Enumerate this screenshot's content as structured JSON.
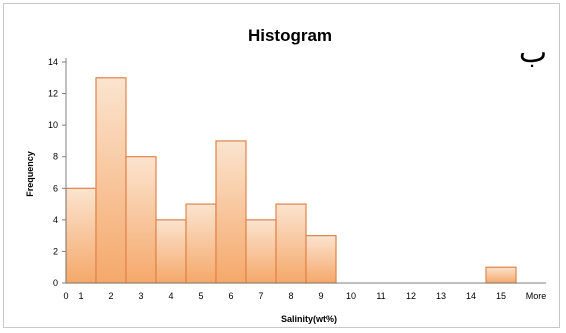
{
  "corner_label": "ب",
  "chart_data": {
    "type": "bar",
    "title": "Histogram",
    "xlabel": "Salinity(wt%)",
    "ylabel": "Frequency",
    "categories": [
      "1",
      "2",
      "3",
      "4",
      "5",
      "6",
      "7",
      "8",
      "9",
      "10",
      "11",
      "12",
      "13",
      "14",
      "15",
      "More"
    ],
    "values": [
      6,
      13,
      8,
      4,
      5,
      9,
      4,
      5,
      3,
      0,
      0,
      0,
      0,
      0,
      1,
      0
    ],
    "x_ticks": [
      "0",
      "1",
      "2",
      "3",
      "4",
      "5",
      "6",
      "7",
      "8",
      "9",
      "10",
      "11",
      "12",
      "13",
      "14",
      "15",
      "More"
    ],
    "y_ticks": [
      0,
      2,
      4,
      6,
      8,
      10,
      12,
      14
    ],
    "ylim": [
      0,
      14
    ],
    "grid": false,
    "legend": "none",
    "colors": {
      "bar_fill_top": "#fbe4cf",
      "bar_fill_bottom": "#f5a86a",
      "bar_stroke": "#e0834a",
      "axis": "#7f7f7f",
      "text": "#000000"
    }
  }
}
